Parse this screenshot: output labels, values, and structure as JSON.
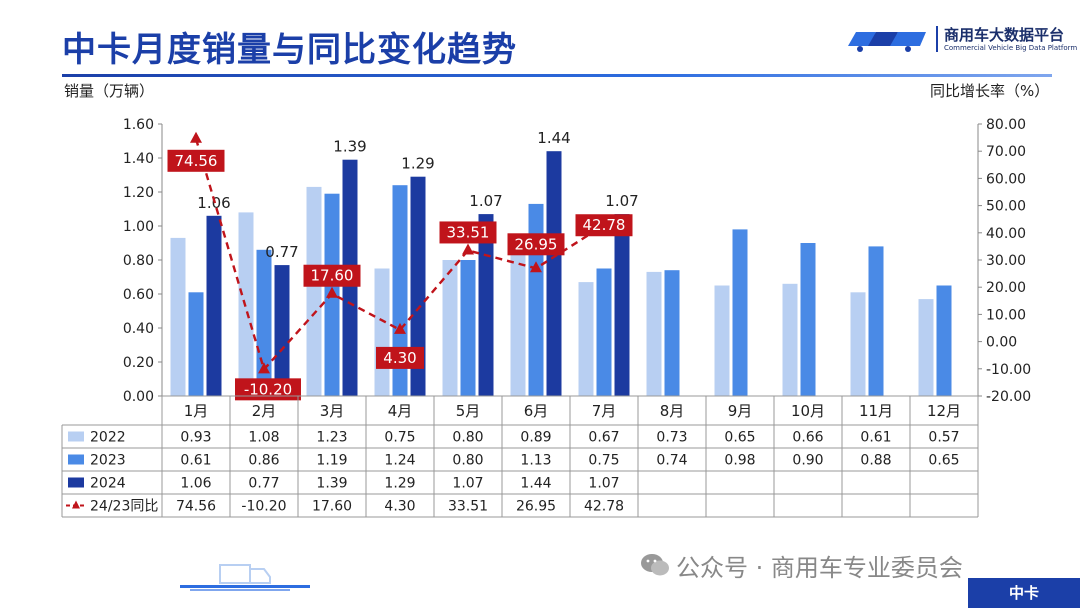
{
  "page": {
    "title": "中卡月度销量与同比变化趋势",
    "logo_name": "商用车大数据平台",
    "logo_en": "Commercial Vehicle Big Data Platform",
    "footer_brand": "公众号 · 商用车专业委员会",
    "footer_tag": "中卡"
  },
  "colors": {
    "s2022": "#b8cff2",
    "s2023": "#4a8ae6",
    "s2024": "#1c3aa0",
    "yoy": "#c0141b",
    "title": "#1b3fa8"
  },
  "chart_data": {
    "type": "bar",
    "categories": [
      "1月",
      "2月",
      "3月",
      "4月",
      "5月",
      "6月",
      "7月",
      "8月",
      "9月",
      "10月",
      "11月",
      "12月"
    ],
    "series": [
      {
        "name": "2022",
        "values": [
          0.93,
          1.08,
          1.23,
          0.75,
          0.8,
          0.89,
          0.67,
          0.73,
          0.65,
          0.66,
          0.61,
          0.57
        ]
      },
      {
        "name": "2023",
        "values": [
          0.61,
          0.86,
          1.19,
          1.24,
          0.8,
          1.13,
          0.75,
          0.74,
          0.98,
          0.9,
          0.88,
          0.65
        ]
      },
      {
        "name": "2024",
        "values": [
          1.06,
          0.77,
          1.39,
          1.29,
          1.07,
          1.44,
          1.07,
          null,
          null,
          null,
          null,
          null
        ]
      }
    ],
    "line_series": {
      "name": "24/23同比",
      "values": [
        74.56,
        -10.2,
        17.6,
        4.3,
        33.51,
        26.95,
        42.78,
        null,
        null,
        null,
        null,
        null
      ],
      "axis": "right"
    },
    "ylabel": "销量（万辆）",
    "y2label": "同比增长率（%）",
    "ylim": [
      0,
      1.6
    ],
    "y2lim": [
      -20,
      80
    ],
    "yticks": [
      "0.00",
      "0.20",
      "0.40",
      "0.60",
      "0.80",
      "1.00",
      "1.20",
      "1.40",
      "1.60"
    ],
    "y2ticks": [
      "-20.00",
      "-10.00",
      "0.00",
      "10.00",
      "20.00",
      "30.00",
      "40.00",
      "50.00",
      "60.00",
      "70.00",
      "80.00"
    ],
    "bar_labels_2024": [
      "1.06",
      "0.77",
      "1.39",
      "1.29",
      "1.07",
      "1.44",
      "1.07"
    ],
    "yoy_labels": [
      "74.56",
      "-10.20",
      "17.60",
      "4.30",
      "33.51",
      "26.95",
      "42.78"
    ],
    "table": {
      "rows": [
        {
          "label": "2022",
          "cells": [
            "0.93",
            "1.08",
            "1.23",
            "0.75",
            "0.80",
            "0.89",
            "0.67",
            "0.73",
            "0.65",
            "0.66",
            "0.61",
            "0.57"
          ]
        },
        {
          "label": "2023",
          "cells": [
            "0.61",
            "0.86",
            "1.19",
            "1.24",
            "0.80",
            "1.13",
            "0.75",
            "0.74",
            "0.98",
            "0.90",
            "0.88",
            "0.65"
          ]
        },
        {
          "label": "2024",
          "cells": [
            "1.06",
            "0.77",
            "1.39",
            "1.29",
            "1.07",
            "1.44",
            "1.07",
            "",
            "",
            "",
            "",
            ""
          ]
        },
        {
          "label": "24/23同比",
          "cells": [
            "74.56",
            "-10.20",
            "17.60",
            "4.30",
            "33.51",
            "26.95",
            "42.78",
            "",
            "",
            "",
            "",
            ""
          ]
        }
      ]
    }
  }
}
